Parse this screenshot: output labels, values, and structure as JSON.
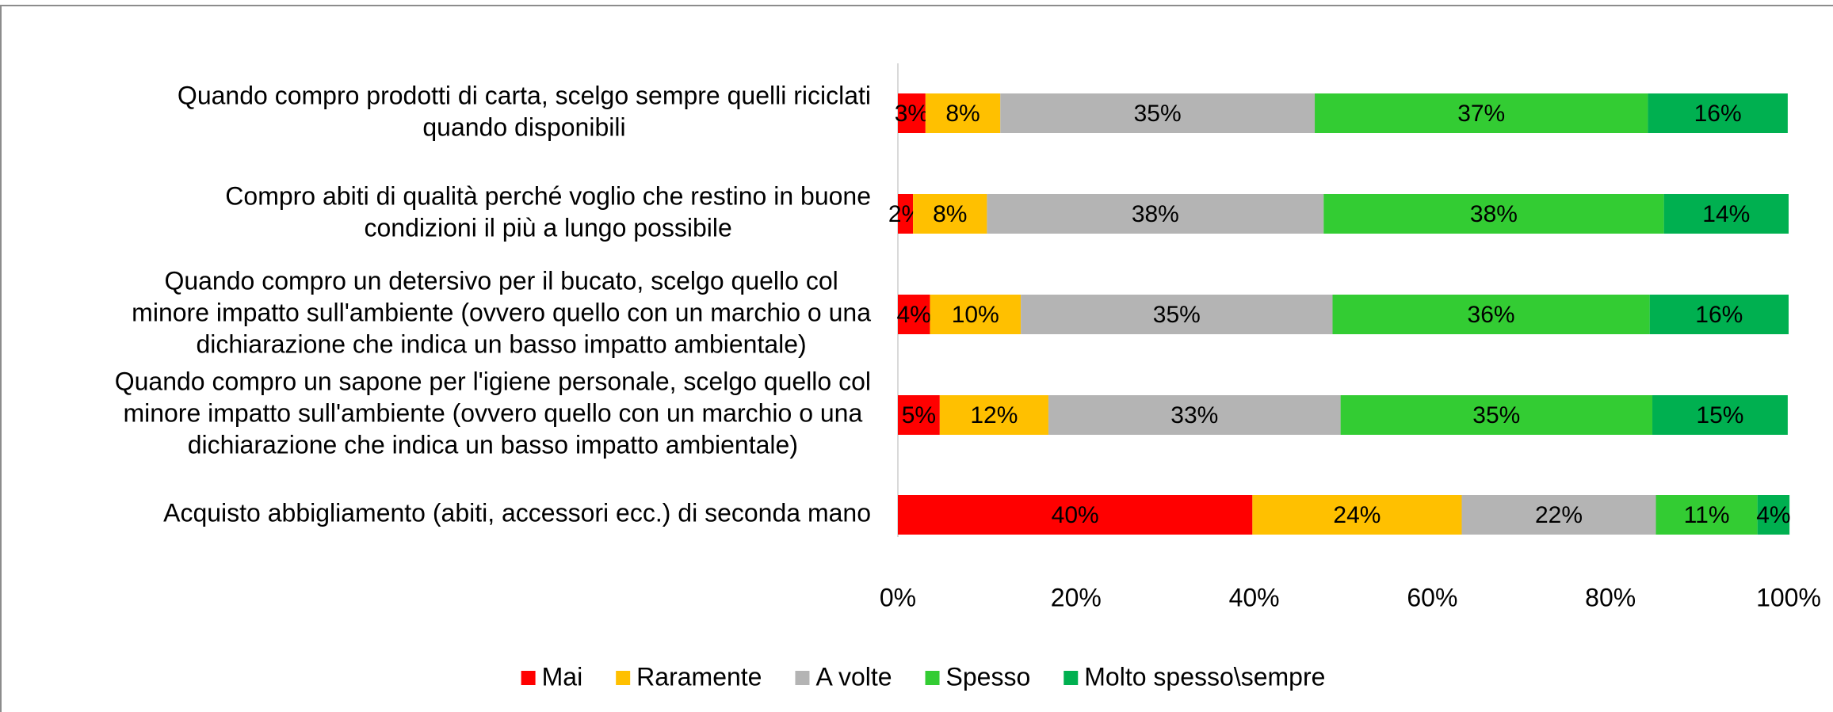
{
  "chart_data": {
    "type": "stacked_barh",
    "categories": [
      [
        "Quando compro prodotti di carta, scelgo sempre quelli riciclati",
        "quando disponibili"
      ],
      [
        "Compro abiti di qualità perché voglio che restino in buone",
        "condizioni il più a lungo possibile"
      ],
      [
        "Quando compro un detersivo per il bucato, scelgo quello col",
        "minore impatto sull'ambiente (ovvero quello con un marchio o una",
        "dichiarazione che indica un basso impatto ambientale)"
      ],
      [
        "Quando compro un sapone per l'igiene personale, scelgo quello col",
        "minore impatto sull'ambiente (ovvero quello con un marchio o una",
        "dichiarazione che indica un basso impatto ambientale)"
      ],
      [
        "Acquisto abbigliamento (abiti, accessori ecc.) di seconda mano"
      ]
    ],
    "series": [
      {
        "name": "Mai",
        "color": "#ff0000",
        "values": [
          3.1,
          1.7,
          3.6,
          4.7,
          39.8
        ],
        "value_labels": [
          "3%",
          "2%",
          "4%",
          "5%",
          "40%"
        ]
      },
      {
        "name": "Raramente",
        "color": "#ffc000",
        "values": [
          8.4,
          8.3,
          10.2,
          12.2,
          23.5
        ],
        "value_labels": [
          "8%",
          "8%",
          "10%",
          "12%",
          "24%"
        ]
      },
      {
        "name": "A volte",
        "color": "#b4b4b4",
        "values": [
          35.3,
          37.8,
          35.0,
          32.8,
          21.8
        ],
        "value_labels": [
          "35%",
          "38%",
          "35%",
          "33%",
          "22%"
        ]
      },
      {
        "name": "Spesso",
        "color": "#33cc33",
        "values": [
          37.4,
          38.2,
          35.6,
          35.0,
          11.4
        ],
        "value_labels": [
          "37%",
          "38%",
          "36%",
          "35%",
          "11%"
        ]
      },
      {
        "name": "Molto spesso\\sempre",
        "color": "#00b050",
        "values": [
          15.7,
          14.0,
          15.6,
          15.2,
          3.6
        ],
        "value_labels": [
          "16%",
          "14%",
          "16%",
          "15%",
          "4%"
        ]
      }
    ],
    "xlim": [
      0,
      100
    ],
    "xticks": [
      {
        "value": 0,
        "label": "0%"
      },
      {
        "value": 20,
        "label": "20%"
      },
      {
        "value": 40,
        "label": "40%"
      },
      {
        "value": 60,
        "label": "60%"
      },
      {
        "value": 80,
        "label": "80%"
      },
      {
        "value": 100,
        "label": "100%"
      }
    ],
    "legend": "bottom"
  }
}
